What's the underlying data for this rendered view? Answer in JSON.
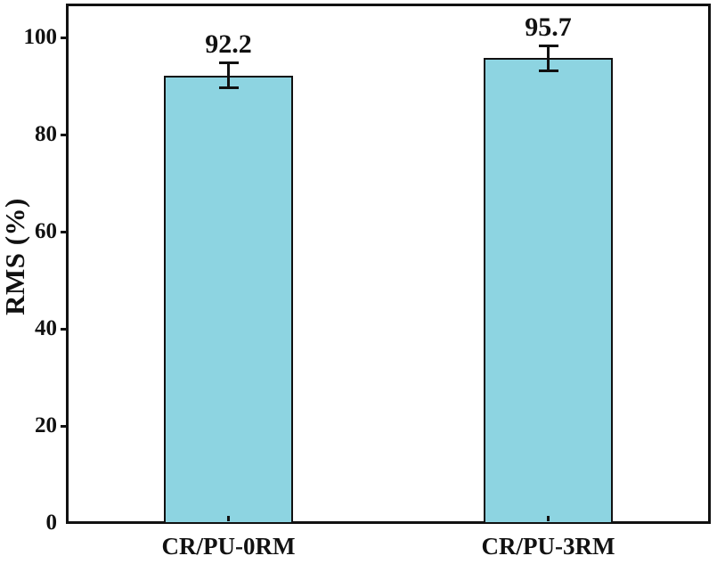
{
  "chart_data": {
    "type": "bar",
    "title": "",
    "ylabel": "RMS (%)",
    "xlabel": "",
    "categories": [
      "CR/PU-0RM",
      "CR/PU-3RM"
    ],
    "values": [
      92.2,
      95.7
    ],
    "value_labels": [
      "92.2",
      "95.7"
    ],
    "errors": [
      2.5,
      2.5
    ],
    "yticks": [
      0,
      20,
      40,
      60,
      80,
      100
    ],
    "ylim": [
      0,
      106
    ],
    "grid": false,
    "legend_position": "none",
    "layout_hints": {
      "bar_orientation": "vertical",
      "error_bars": "symmetric, capped",
      "frame": "full box, no gridlines",
      "y_ticks_direction": "out",
      "x_ticks_direction": "in"
    },
    "colors": {
      "bar_fill": "#8DD4E1",
      "bar_edge": "#111111",
      "axis": "#111111",
      "text": "#111111",
      "background": "#FFFFFF"
    }
  }
}
